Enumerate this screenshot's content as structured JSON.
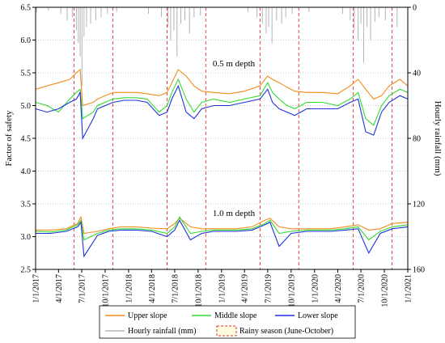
{
  "chart_data": {
    "type": "line",
    "ylabel_left": "Factor of safety",
    "ylabel_right": "Hourly rainfall (mm)",
    "ylim_left": [
      2.5,
      6.5
    ],
    "yticks_left": [
      "2.5",
      "3.0",
      "3.5",
      "4.0",
      "4.5",
      "5.0",
      "5.5",
      "6.0",
      "6.5"
    ],
    "ylim_right": [
      0,
      160
    ],
    "yticks_right": [
      "0",
      "40",
      "80",
      "120",
      "160"
    ],
    "x_range": [
      "1/1/2017",
      "1/1/2021"
    ],
    "xticks": [
      "1/1/2017",
      "4/1/2017",
      "7/1/2017",
      "10/1/2017",
      "1/1/2018",
      "4/1/2018",
      "7/1/2018",
      "10/1/2018",
      "1/1/2019",
      "4/1/2019",
      "7/1/2019",
      "10/1/2019",
      "1/1/2020",
      "4/1/2020",
      "7/1/2020",
      "10/1/2020",
      "1/1/2021"
    ],
    "grid": "horizontal dotted",
    "annotations": [
      "0.5 m depth",
      "1.0 m depth"
    ],
    "rainy_seasons": [
      [
        "6/1/2017",
        "10/31/2017"
      ],
      [
        "6/1/2018",
        "10/31/2018"
      ],
      [
        "6/1/2019",
        "10/31/2019"
      ],
      [
        "6/1/2020",
        "10/31/2020"
      ]
    ],
    "legend": {
      "placement": "bottom",
      "entries": [
        "Upper slope",
        "Middle slope",
        "Lower slope",
        "Hourly rainfall (mm)",
        "Rainy season (June-October)"
      ]
    },
    "series": [
      {
        "name": "Upper slope",
        "depth": "0.5 m",
        "x": [
          "1/1/2017",
          "2/15/2017",
          "4/1/2017",
          "5/15/2017",
          "6/10/2017",
          "6/25/2017",
          "7/5/2017",
          "8/15/2017",
          "9/1/2017",
          "10/1/2017",
          "11/1/2017",
          "12/15/2017",
          "2/1/2018",
          "3/15/2018",
          "5/1/2018",
          "6/1/2018",
          "6/20/2018",
          "7/15/2018",
          "8/15/2018",
          "9/15/2018",
          "10/15/2018",
          "12/1/2018",
          "2/1/2019",
          "4/1/2019",
          "6/1/2019",
          "7/1/2019",
          "7/20/2019",
          "8/15/2019",
          "9/15/2019",
          "10/15/2019",
          "12/1/2019",
          "2/1/2020",
          "4/1/2020",
          "5/20/2020",
          "6/20/2020",
          "7/20/2020",
          "8/20/2020",
          "9/20/2020",
          "10/20/2020",
          "12/1/2020",
          "1/1/2021"
        ],
        "y": [
          5.25,
          5.3,
          5.35,
          5.4,
          5.5,
          5.55,
          5.0,
          5.05,
          5.1,
          5.15,
          5.2,
          5.2,
          5.2,
          5.18,
          5.15,
          5.2,
          5.35,
          5.55,
          5.45,
          5.3,
          5.22,
          5.2,
          5.18,
          5.22,
          5.3,
          5.45,
          5.4,
          5.35,
          5.28,
          5.22,
          5.2,
          5.2,
          5.18,
          5.3,
          5.4,
          5.25,
          5.1,
          5.15,
          5.3,
          5.4,
          5.3
        ]
      },
      {
        "name": "Middle slope",
        "depth": "0.5 m",
        "x": [
          "1/1/2017",
          "2/15/2017",
          "4/1/2017",
          "5/15/2017",
          "6/10/2017",
          "6/25/2017",
          "7/5/2017",
          "8/15/2017",
          "9/1/2017",
          "10/1/2017",
          "11/1/2017",
          "12/15/2017",
          "2/1/2018",
          "3/15/2018",
          "5/1/2018",
          "6/1/2018",
          "6/20/2018",
          "7/15/2018",
          "8/15/2018",
          "9/15/2018",
          "10/15/2018",
          "12/1/2018",
          "2/1/2019",
          "4/1/2019",
          "6/1/2019",
          "7/1/2019",
          "7/20/2019",
          "8/15/2019",
          "9/15/2019",
          "10/15/2019",
          "12/1/2019",
          "2/1/2020",
          "4/1/2020",
          "5/20/2020",
          "6/20/2020",
          "7/20/2020",
          "8/20/2020",
          "9/20/2020",
          "10/20/2020",
          "12/1/2020",
          "1/1/2021"
        ],
        "y": [
          5.05,
          5.0,
          4.9,
          5.1,
          5.2,
          5.25,
          4.8,
          4.9,
          5.0,
          5.05,
          5.1,
          5.12,
          5.12,
          5.1,
          4.9,
          5.0,
          5.2,
          5.4,
          5.1,
          4.9,
          5.05,
          5.1,
          5.05,
          5.1,
          5.15,
          5.35,
          5.2,
          5.1,
          5.0,
          4.95,
          5.05,
          5.05,
          5.0,
          5.1,
          5.2,
          4.8,
          4.7,
          5.0,
          5.15,
          5.25,
          5.2
        ]
      },
      {
        "name": "Lower slope",
        "depth": "0.5 m",
        "x": [
          "1/1/2017",
          "2/15/2017",
          "4/1/2017",
          "5/15/2017",
          "6/10/2017",
          "6/25/2017",
          "7/5/2017",
          "8/15/2017",
          "9/1/2017",
          "10/1/2017",
          "11/1/2017",
          "12/15/2017",
          "2/1/2018",
          "3/15/2018",
          "5/1/2018",
          "6/1/2018",
          "6/20/2018",
          "7/15/2018",
          "8/15/2018",
          "9/15/2018",
          "10/15/2018",
          "12/1/2018",
          "2/1/2019",
          "4/1/2019",
          "6/1/2019",
          "7/1/2019",
          "7/20/2019",
          "8/15/2019",
          "9/15/2019",
          "10/15/2019",
          "12/1/2019",
          "2/1/2020",
          "4/1/2020",
          "5/20/2020",
          "6/20/2020",
          "7/20/2020",
          "8/20/2020",
          "9/20/2020",
          "10/20/2020",
          "12/1/2020",
          "1/1/2021"
        ],
        "y": [
          4.95,
          4.9,
          4.95,
          5.05,
          5.1,
          5.2,
          4.5,
          4.8,
          4.95,
          5.0,
          5.05,
          5.08,
          5.08,
          5.05,
          4.85,
          4.9,
          5.1,
          5.3,
          4.9,
          4.8,
          4.95,
          5.0,
          5.0,
          5.05,
          5.1,
          5.25,
          5.05,
          4.95,
          4.9,
          4.85,
          4.95,
          4.95,
          4.95,
          5.05,
          5.1,
          4.6,
          4.55,
          4.9,
          5.05,
          5.15,
          5.1
        ]
      },
      {
        "name": "Upper slope",
        "depth": "1.0 m",
        "x": [
          "1/1/2017",
          "3/1/2017",
          "5/1/2017",
          "6/15/2017",
          "6/28/2017",
          "7/10/2017",
          "9/1/2017",
          "10/15/2017",
          "12/1/2017",
          "2/1/2018",
          "4/1/2018",
          "6/1/2018",
          "7/1/2018",
          "7/20/2018",
          "9/1/2018",
          "10/15/2018",
          "12/1/2018",
          "3/1/2019",
          "5/1/2019",
          "6/20/2019",
          "7/10/2019",
          "8/15/2019",
          "10/1/2019",
          "12/1/2019",
          "3/1/2020",
          "5/1/2020",
          "6/20/2020",
          "8/1/2020",
          "9/15/2020",
          "11/1/2020",
          "1/1/2021"
        ],
        "y": [
          3.1,
          3.1,
          3.12,
          3.2,
          3.3,
          3.05,
          3.08,
          3.12,
          3.15,
          3.15,
          3.13,
          3.12,
          3.2,
          3.28,
          3.15,
          3.12,
          3.12,
          3.12,
          3.15,
          3.25,
          3.28,
          3.15,
          3.12,
          3.12,
          3.12,
          3.15,
          3.18,
          3.1,
          3.12,
          3.2,
          3.22
        ]
      },
      {
        "name": "Middle slope",
        "depth": "1.0 m",
        "x": [
          "1/1/2017",
          "3/1/2017",
          "5/1/2017",
          "6/15/2017",
          "6/28/2017",
          "7/10/2017",
          "9/1/2017",
          "10/15/2017",
          "12/1/2017",
          "2/1/2018",
          "4/1/2018",
          "6/1/2018",
          "7/1/2018",
          "7/20/2018",
          "9/1/2018",
          "10/15/2018",
          "12/1/2018",
          "3/1/2019",
          "5/1/2019",
          "6/20/2019",
          "7/10/2019",
          "8/15/2019",
          "10/1/2019",
          "12/1/2019",
          "3/1/2020",
          "5/1/2020",
          "6/20/2020",
          "8/1/2020",
          "9/15/2020",
          "11/1/2020",
          "1/1/2021"
        ],
        "y": [
          3.08,
          3.07,
          3.1,
          3.18,
          3.25,
          2.95,
          3.05,
          3.1,
          3.12,
          3.12,
          3.1,
          3.05,
          3.15,
          3.3,
          3.05,
          3.08,
          3.1,
          3.1,
          3.12,
          3.2,
          3.25,
          3.05,
          3.08,
          3.1,
          3.1,
          3.12,
          3.15,
          2.95,
          3.08,
          3.15,
          3.18
        ]
      },
      {
        "name": "Lower slope",
        "depth": "1.0 m",
        "x": [
          "1/1/2017",
          "3/1/2017",
          "5/1/2017",
          "6/15/2017",
          "6/28/2017",
          "7/10/2017",
          "9/1/2017",
          "10/15/2017",
          "12/1/2017",
          "2/1/2018",
          "4/1/2018",
          "6/1/2018",
          "7/1/2018",
          "7/20/2018",
          "9/1/2018",
          "10/15/2018",
          "12/1/2018",
          "3/1/2019",
          "5/1/2019",
          "6/20/2019",
          "7/10/2019",
          "8/15/2019",
          "10/1/2019",
          "12/1/2019",
          "3/1/2020",
          "5/1/2020",
          "6/20/2020",
          "8/1/2020",
          "9/15/2020",
          "11/1/2020",
          "1/1/2021"
        ],
        "y": [
          3.05,
          3.05,
          3.08,
          3.15,
          3.22,
          2.7,
          3.02,
          3.08,
          3.1,
          3.1,
          3.08,
          3.0,
          3.1,
          3.25,
          2.95,
          3.05,
          3.08,
          3.08,
          3.1,
          3.18,
          3.22,
          2.85,
          3.05,
          3.08,
          3.08,
          3.1,
          3.12,
          2.75,
          3.05,
          3.12,
          3.15
        ]
      }
    ],
    "rainfall": {
      "name": "Hourly rainfall (mm)",
      "x": [
        "1/5/2017",
        "2/20/2017",
        "4/10/2017",
        "5/5/2017",
        "5/25/2017",
        "6/10/2017",
        "6/18/2017",
        "6/25/2017",
        "7/2/2017",
        "7/10/2017",
        "7/20/2017",
        "8/5/2017",
        "8/25/2017",
        "9/15/2017",
        "10/10/2017",
        "11/15/2017",
        "3/20/2018",
        "5/10/2018",
        "6/5/2018",
        "6/15/2018",
        "6/28/2018",
        "7/10/2018",
        "7/25/2018",
        "8/10/2018",
        "8/28/2018",
        "9/15/2018",
        "10/10/2018",
        "4/15/2019",
        "5/20/2019",
        "6/10/2019",
        "6/25/2019",
        "7/5/2019",
        "7/18/2019",
        "8/5/2019",
        "8/25/2019",
        "9/10/2019",
        "10/5/2019",
        "12/10/2019",
        "4/20/2020",
        "5/20/2020",
        "6/5/2020",
        "6/20/2020",
        "7/1/2020",
        "7/12/2020",
        "7/25/2020",
        "8/8/2020",
        "8/25/2020",
        "9/10/2020",
        "10/5/2020",
        "11/20/2020"
      ],
      "values": [
        3,
        2,
        4,
        8,
        6,
        14,
        22,
        30,
        48,
        18,
        12,
        10,
        8,
        6,
        4,
        3,
        4,
        6,
        12,
        20,
        14,
        30,
        10,
        8,
        16,
        6,
        5,
        3,
        6,
        10,
        16,
        12,
        22,
        8,
        10,
        6,
        4,
        3,
        4,
        8,
        14,
        20,
        10,
        34,
        12,
        20,
        9,
        6,
        8,
        12
      ]
    }
  }
}
